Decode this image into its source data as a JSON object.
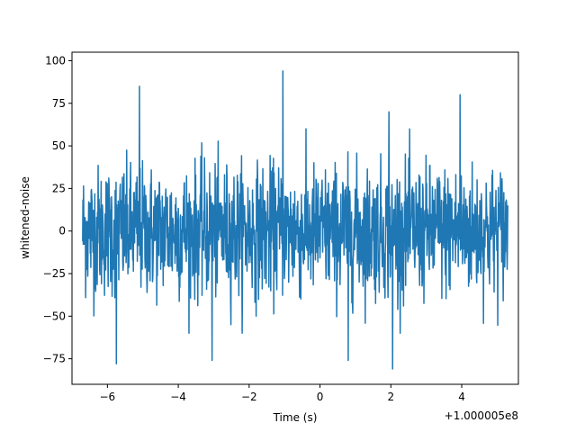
{
  "chart_data": {
    "type": "line",
    "title": "",
    "xlabel": "Time (s)",
    "ylabel": "whitened-noise",
    "x_offset_label": "+1.000005e8",
    "xlim": [
      -7.0,
      5.6
    ],
    "ylim": [
      -90,
      105
    ],
    "x_ticks": [
      -6,
      -4,
      -2,
      0,
      2,
      4
    ],
    "x_tick_labels": [
      "−6",
      "−4",
      "−2",
      "0",
      "2",
      "4"
    ],
    "y_ticks": [
      -75,
      -50,
      -25,
      0,
      25,
      50,
      75,
      100
    ],
    "y_tick_labels": [
      "−75",
      "−50",
      "−25",
      "0",
      "25",
      "50",
      "75",
      "100"
    ],
    "grid": false,
    "legend": "none",
    "series": [
      {
        "color": "#1f77b4",
        "x_range": [
          -6.7,
          5.3
        ],
        "typical_band": [
          -45,
          45
        ],
        "peaks": [
          {
            "x": -5.1,
            "y": 85
          },
          {
            "x": -1.05,
            "y": 94
          },
          {
            "x": 1.95,
            "y": 70
          },
          {
            "x": 3.95,
            "y": 80
          }
        ],
        "troughs": [
          {
            "x": -5.75,
            "y": -78
          },
          {
            "x": -3.05,
            "y": -76
          },
          {
            "x": 0.8,
            "y": -76
          },
          {
            "x": 2.05,
            "y": -81
          }
        ]
      }
    ]
  }
}
